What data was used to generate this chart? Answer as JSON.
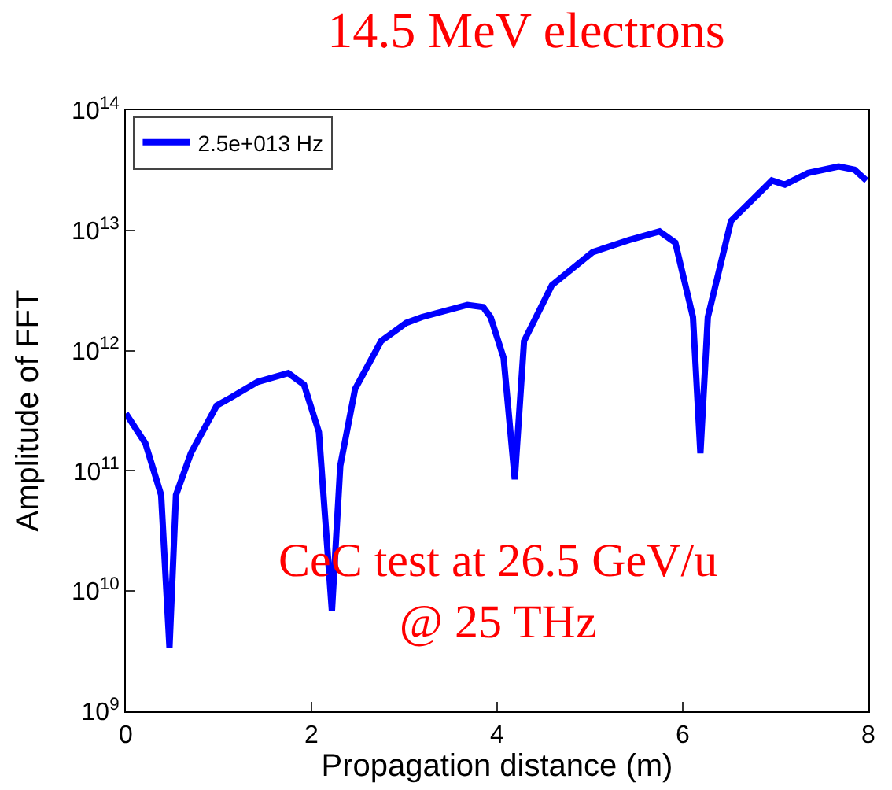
{
  "chart_data": {
    "type": "line",
    "title": "14.5 MeV electrons",
    "xlabel": "Propagation distance (m)",
    "ylabel": "Amplitude of FFT",
    "x": [
      0,
      0.21,
      0.38,
      0.47,
      0.54,
      0.7,
      0.98,
      1.09,
      1.42,
      1.75,
      1.92,
      2.08,
      2.22,
      2.31,
      2.47,
      2.75,
      3.02,
      3.19,
      3.68,
      3.85,
      3.93,
      4.07,
      4.19,
      4.29,
      4.59,
      5.03,
      5.42,
      5.75,
      5.92,
      6.11,
      6.19,
      6.27,
      6.52,
      6.96,
      7.1,
      7.35,
      7.68,
      7.85,
      7.98
    ],
    "series": [
      {
        "name": "2.5e+013 Hz",
        "color": "#0000ff",
        "values": [
          300000000000.0,
          170000000000.0,
          63000000000.0,
          3400000000.0,
          63000000000.0,
          140000000000.0,
          350000000000.0,
          390000000000.0,
          550000000000.0,
          650000000000.0,
          520000000000.0,
          210000000000.0,
          6800000000.0,
          110000000000.0,
          480000000000.0,
          1200000000000.0,
          1700000000000.0,
          1900000000000.0,
          2400000000000.0,
          2300000000000.0,
          1900000000000.0,
          870000000000.0,
          85000000000.0,
          1200000000000.0,
          3500000000000.0,
          6600000000000.0,
          8300000000000.0,
          9800000000000.0,
          7900000000000.0,
          1900000000000.0,
          140000000000.0,
          1900000000000.0,
          12000000000000.0,
          26000000000000.0,
          24000000000000.0,
          30000000000000.0,
          34000000000000.0,
          32000000000000.0,
          26000000000000.0
        ]
      }
    ],
    "xlim": [
      0,
      8
    ],
    "xticks": [
      0,
      2,
      4,
      6,
      8
    ],
    "log": "y",
    "ylim": [
      1000000000.0,
      100000000000000.0
    ],
    "yticks": [
      {
        "value": 1000000000.0,
        "label": "10$^{9}$"
      },
      {
        "value": 10000000000.0,
        "label": "10$^{10}$"
      },
      {
        "value": 100000000000.0,
        "label": "10$^{11}$"
      },
      {
        "value": 1000000000000.0,
        "label": "10$^{12}$"
      },
      {
        "value": 10000000000000.0,
        "label": "10$^{13}$"
      },
      {
        "value": 100000000000000.0,
        "label": "10$^{14}$"
      }
    ],
    "legend": "top left",
    "marker": "none",
    "line_style": "solid",
    "annotations": [
      "CeC test at 26.5 GeV/u\n@ 25 THz"
    ]
  }
}
